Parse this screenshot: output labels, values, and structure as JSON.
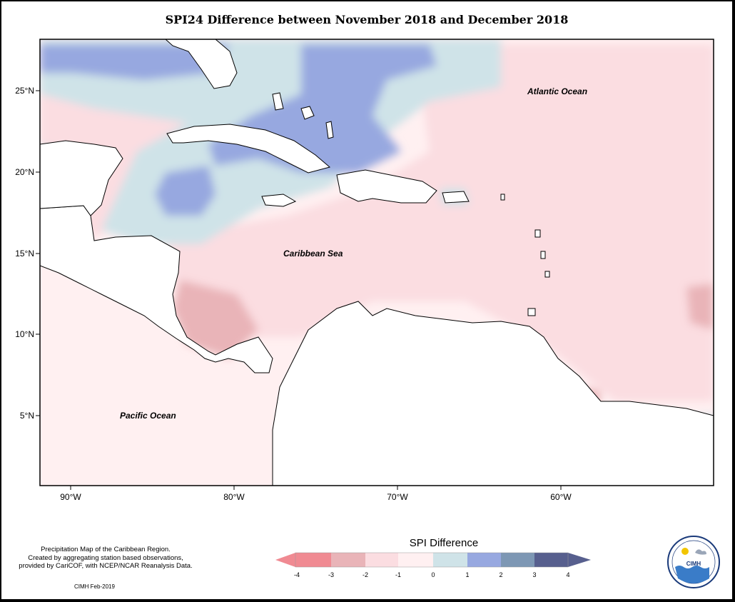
{
  "title": "SPI24 Difference between November 2018 and December 2018",
  "axes": {
    "x_ticks": [
      "90°W",
      "80°W",
      "70°W",
      "60°W"
    ],
    "y_ticks": [
      "25°N",
      "20°N",
      "15°N",
      "10°N",
      "5°N"
    ]
  },
  "map_labels": {
    "atlantic": "Atlantic Ocean",
    "caribbean": "Caribbean Sea",
    "pacific": "Pacific Ocean"
  },
  "legend": {
    "title": "SPI Difference",
    "ticks": [
      "-4",
      "-3",
      "-2",
      "-1",
      "0",
      "1",
      "2",
      "3",
      "4"
    ],
    "colors": {
      "lt_-3": "#f08a92",
      "-3_-2": "#e9b4b8",
      "-2_-1": "#fbdde1",
      "-1_0": "#fff0f1",
      "0_1": "#cfe3e8",
      "1_2": "#97a8e0",
      "2_3": "#7d97b4",
      "gt_3": "#575f8e"
    }
  },
  "footnote": "Precipitation Map of the Caribbean Region.\nCreated by aggregating station based observations,\nprovided by CariCOF, with NCEP/NCAR Reanalysis Data.",
  "credit": "CIMH Feb-2019",
  "logo": {
    "abbreviation": "CIMH"
  }
}
